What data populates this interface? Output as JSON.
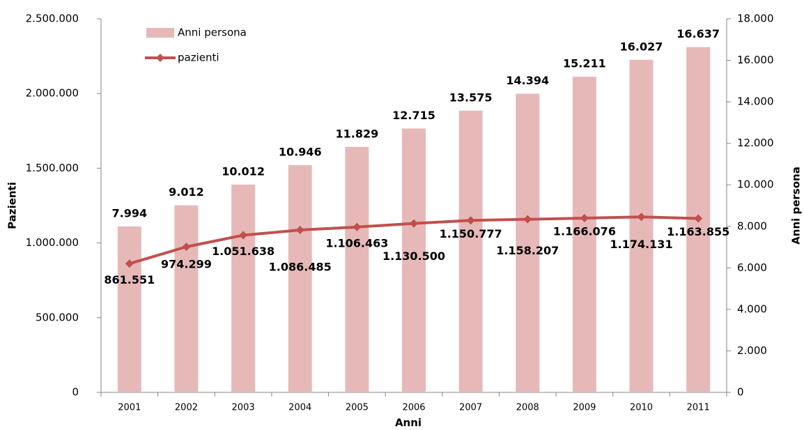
{
  "chart_data": {
    "type": "bar-line",
    "x_label": "Anni",
    "y_label": "Pazienti",
    "y2_label": "Anni persona",
    "categories": [
      "2001",
      "2002",
      "2003",
      "2004",
      "2005",
      "2006",
      "2007",
      "2008",
      "2009",
      "2010",
      "2011"
    ],
    "series": [
      {
        "name": "Anni persona",
        "type": "bar",
        "axis": "y2",
        "color": "#e6b9b8",
        "values": [
          7994,
          9012,
          10012,
          10946,
          11829,
          12715,
          13575,
          14394,
          15211,
          16027,
          16637
        ],
        "value_labels": [
          "7.994",
          "9.012",
          "10.012",
          "10.946",
          "11.829",
          "12.715",
          "13.575",
          "14.394",
          "15.211",
          "16.027",
          "16.637"
        ]
      },
      {
        "name": "pazienti",
        "type": "line",
        "axis": "y",
        "color": "#c0504d",
        "values": [
          861551,
          974299,
          1051638,
          1086485,
          1106463,
          1130500,
          1150777,
          1158207,
          1166076,
          1174131,
          1163855
        ],
        "value_labels": [
          "861.551",
          "974.299",
          "1.051.638",
          "1.086.485",
          "1.106.463",
          "1.130.500",
          "1.150.777",
          "1.158.207",
          "1.166.076",
          "1.174.131",
          "1.163.855"
        ]
      }
    ],
    "ylim": [
      0,
      2500000
    ],
    "yticks": [
      0,
      {
        "value": 500000,
        "label": "500.000"
      },
      {
        "value": 1000000,
        "label": "1.000.000"
      },
      {
        "value": 1500000,
        "label": "1.500.000"
      },
      {
        "value": 2000000,
        "label": "2.000.000"
      },
      {
        "value": 2500000,
        "label": "2.500.000"
      }
    ],
    "y2lim": [
      0,
      18000
    ],
    "y2ticks": [
      0,
      {
        "value": 2000,
        "label": "2.000"
      },
      {
        "value": 4000,
        "label": "4.000"
      },
      {
        "value": 6000,
        "label": "6.000"
      },
      {
        "value": 8000,
        "label": "8.000"
      },
      {
        "value": 10000,
        "label": "10.000"
      },
      {
        "value": 12000,
        "label": "12.000"
      },
      {
        "value": 14000,
        "label": "14.000"
      },
      {
        "value": 16000,
        "label": "16.000"
      },
      {
        "value": 18000,
        "label": "18.000"
      }
    ],
    "grid": false,
    "legend": "upper left"
  }
}
